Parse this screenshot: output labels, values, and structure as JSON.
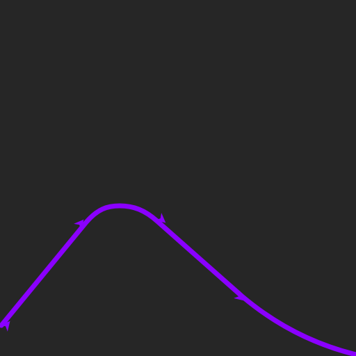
{
  "scene": {
    "background_color": "#262626",
    "stroke_color": "#8a00ff",
    "shapes": [
      {
        "name": "curve-path",
        "kind": "smooth-path"
      },
      {
        "name": "arrow-marker-1",
        "kind": "arrow-head",
        "icon": "arrow-marker-icon"
      },
      {
        "name": "arrow-marker-2",
        "kind": "arrow-head",
        "icon": "arrow-marker-icon"
      },
      {
        "name": "arrow-marker-3",
        "kind": "arrow-head",
        "icon": "arrow-marker-icon"
      },
      {
        "name": "arrow-marker-4",
        "kind": "arrow-head",
        "icon": "arrow-marker-icon"
      }
    ]
  }
}
